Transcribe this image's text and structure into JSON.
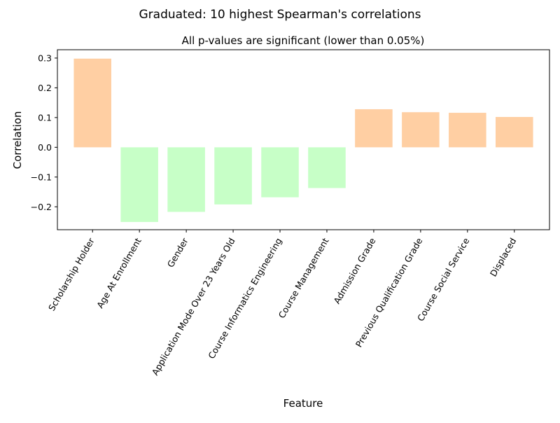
{
  "chart_data": {
    "type": "bar",
    "title": "Graduated: 10 highest Spearman's correlations",
    "subtitle": "All p-values are significant (lower than 0.05%)",
    "xlabel": "Feature",
    "ylabel": "Correlation",
    "categories": [
      "Scholarship Holder",
      "Age At Enrollment",
      "Gender",
      "Application Mode Over 23 Years Old",
      "Course Informatics Engineering",
      "Course Management",
      "Admission Grade",
      "Previous Qualification Grade",
      "Course Social Service",
      "Displaced"
    ],
    "values": [
      0.298,
      -0.251,
      -0.217,
      -0.192,
      -0.168,
      -0.137,
      0.128,
      0.118,
      0.116,
      0.102
    ],
    "ylim": [
      -0.277,
      0.328
    ],
    "yticks": [
      -0.2,
      -0.1,
      0.0,
      0.1,
      0.2,
      0.3
    ],
    "ytick_labels": [
      "−0.2",
      "−0.1",
      "0.0",
      "0.1",
      "0.2",
      "0.3"
    ],
    "colors": {
      "positive": "#ffcfa3",
      "negative": "#c7ffc7"
    },
    "grid": false,
    "legend": "none"
  }
}
